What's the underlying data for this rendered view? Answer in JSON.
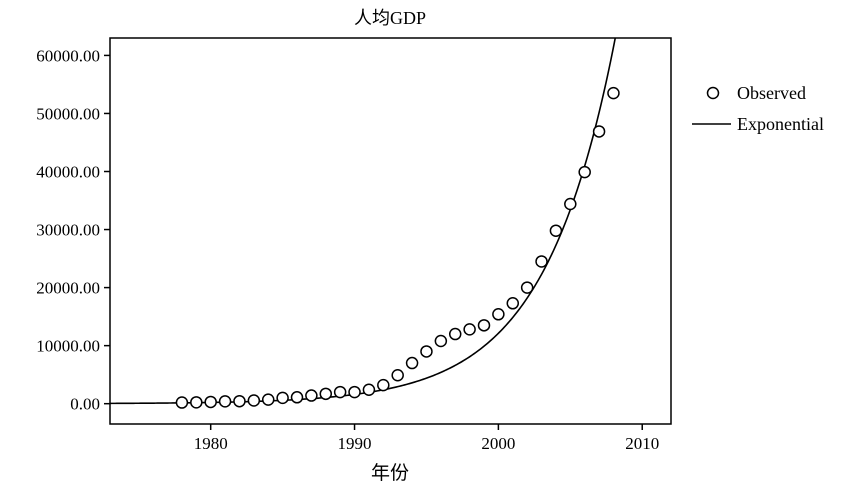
{
  "chart_data": {
    "type": "scatter",
    "title": "人均GDP",
    "xlabel": "年份",
    "ylabel": "",
    "xlim": [
      1973,
      2012
    ],
    "ylim": [
      -3500,
      63000
    ],
    "x_ticks": [
      1980,
      1990,
      2000,
      2010
    ],
    "x_tick_labels": [
      "1980",
      "1990",
      "2000",
      "2010"
    ],
    "y_ticks": [
      0,
      10000,
      20000,
      30000,
      40000,
      50000,
      60000
    ],
    "y_tick_labels": [
      "0.00",
      "10000.00",
      "20000.00",
      "30000.00",
      "40000.00",
      "50000.00",
      "60000.00"
    ],
    "grid": false,
    "legend_position": "right",
    "series": [
      {
        "name": "Observed",
        "kind": "points",
        "marker": "open-circle",
        "x": [
          1978,
          1979,
          1980,
          1981,
          1982,
          1983,
          1984,
          1985,
          1986,
          1987,
          1988,
          1989,
          1990,
          1991,
          1992,
          1993,
          1994,
          1995,
          1996,
          1997,
          1998,
          1999,
          2000,
          2001,
          2002,
          2003,
          2004,
          2005,
          2006,
          2007,
          2008
        ],
        "y": [
          200,
          230,
          300,
          400,
          430,
          550,
          700,
          1000,
          1100,
          1400,
          1700,
          2000,
          2000,
          2400,
          3200,
          4900,
          7000,
          9000,
          10800,
          12000,
          12800,
          13500,
          15400,
          17300,
          20000,
          24500,
          29800,
          34400,
          39900,
          46900,
          53500
        ]
      },
      {
        "name": "Exponential",
        "kind": "line",
        "model": "y = a * exp(b * (x - 1978))",
        "a": 140,
        "b": 0.2028,
        "x_range": [
          1973,
          2008.3
        ]
      }
    ]
  }
}
